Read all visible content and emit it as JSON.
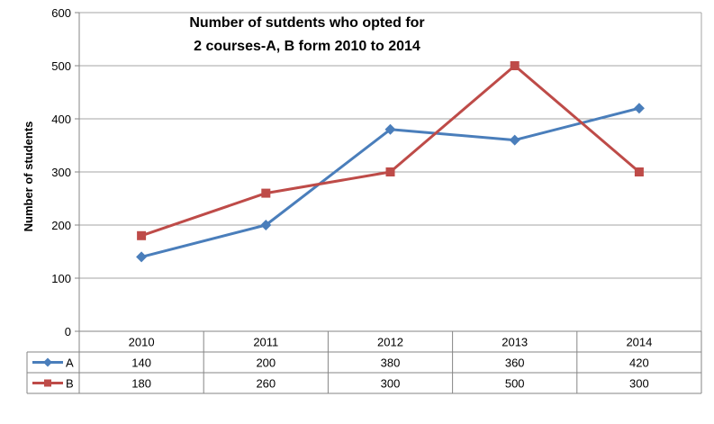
{
  "chart_data": {
    "type": "line",
    "title_lines": [
      "Number of sutdents who opted for",
      "2 courses-A, B form 2010 to 2014"
    ],
    "ylabel": "Number of students",
    "xlabel": "",
    "ylim": [
      0,
      600
    ],
    "yticks": [
      0,
      100,
      200,
      300,
      400,
      500,
      600
    ],
    "grid": true,
    "categories": [
      "2010",
      "2011",
      "2012",
      "2013",
      "2014"
    ],
    "series": [
      {
        "name": "A",
        "values": [
          140,
          200,
          380,
          360,
          420
        ],
        "color": "#4a7ebb",
        "marker": "diamond"
      },
      {
        "name": "B",
        "values": [
          180,
          260,
          300,
          500,
          300
        ],
        "color": "#be4b48",
        "marker": "square"
      }
    ],
    "legend": "data-table"
  }
}
